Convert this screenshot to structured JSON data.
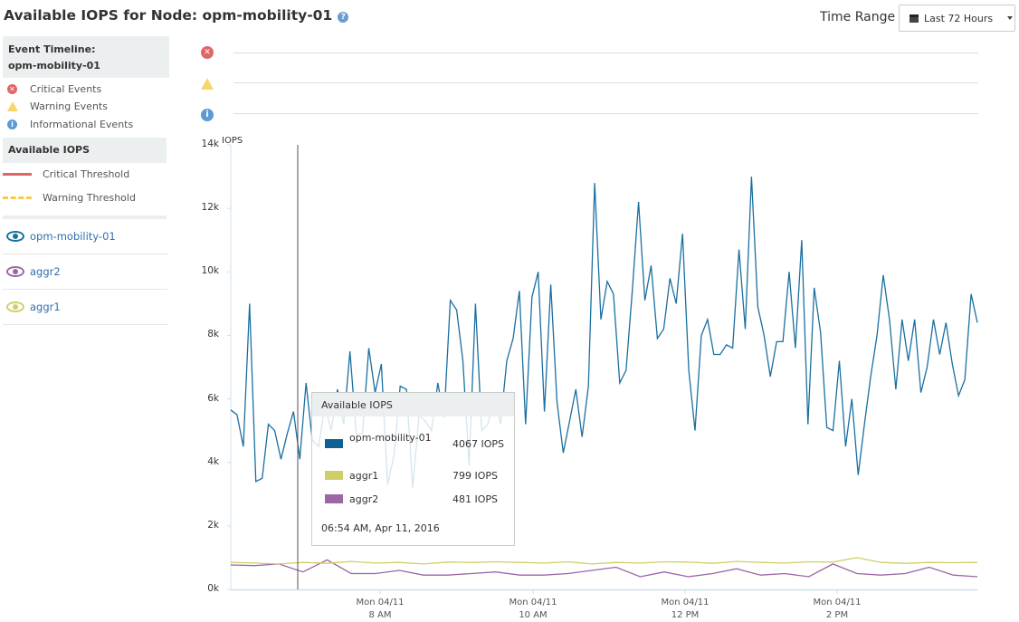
{
  "header": {
    "title": "Available IOPS for Node: opm-mobility-01",
    "help_icon": "question-circle-icon",
    "time_range_label": "Time Range",
    "time_range_value": "Last 72 Hours"
  },
  "sidebar": {
    "event_timeline_title": "Event Timeline:",
    "event_timeline_node": "opm-mobility-01",
    "events": [
      {
        "label": "Critical Events",
        "icon": "critical-icon"
      },
      {
        "label": "Warning Events",
        "icon": "warning-icon"
      },
      {
        "label": "Informational Events",
        "icon": "info-icon"
      }
    ],
    "metric_title": "Available IOPS",
    "thresholds": [
      {
        "label": "Critical Threshold",
        "color": "#e06666"
      },
      {
        "label": "Warning Threshold",
        "color": "#f8c94a"
      }
    ],
    "series": [
      {
        "label": "opm-mobility-01",
        "color": "#1a6fa0"
      },
      {
        "label": "aggr2",
        "color": "#9b66a3"
      },
      {
        "label": "aggr1",
        "color": "#cfcf6a"
      }
    ]
  },
  "tooltip": {
    "title": "Available IOPS",
    "rows": [
      {
        "name": "opm-mobility-01",
        "value": "4067 IOPS",
        "color": "#0f6095"
      },
      {
        "name": "aggr1",
        "value": "799 IOPS",
        "color": "#cfcf6a"
      },
      {
        "name": "aggr2",
        "value": "481 IOPS",
        "color": "#9b66a3"
      }
    ],
    "timestamp": "06:54 AM, Apr 11, 2016"
  },
  "chart_data": {
    "type": "line",
    "ylabel": "IOPS",
    "ylim": [
      0,
      14000
    ],
    "yticks": [
      "0k",
      "2k",
      "4k",
      "6k",
      "8k",
      "10k",
      "12k",
      "14k"
    ],
    "xlim": [
      "06:02 AM",
      "03:51 PM"
    ],
    "xticks": [
      {
        "line1": "Mon 04/11",
        "line2": "8 AM"
      },
      {
        "line1": "Mon 04/11",
        "line2": "10 AM"
      },
      {
        "line1": "Mon 04/11",
        "line2": "12 PM"
      },
      {
        "line1": "Mon 04/11",
        "line2": "2 PM"
      }
    ],
    "cursor_time": "06:54 AM",
    "series": [
      {
        "name": "opm-mobility-01",
        "color": "#1a6fa0",
        "values": [
          5650,
          5500,
          4500,
          9000,
          3400,
          3500,
          5200,
          5000,
          4100,
          4900,
          5600,
          4100,
          6500,
          4700,
          4500,
          5800,
          5000,
          6300,
          5200,
          7500,
          4900,
          4900,
          7600,
          6200,
          7100,
          3300,
          4200,
          6400,
          6300,
          3200,
          5500,
          5300,
          5000,
          6500,
          5400,
          9100,
          8800,
          7200,
          3900,
          9000,
          5000,
          5200,
          6200,
          5200,
          7200,
          7900,
          9400,
          5200,
          9200,
          10000,
          5600,
          9600,
          5900,
          4300,
          5300,
          6300,
          4800,
          6400,
          12800,
          8500,
          9700,
          9300,
          6500,
          6900,
          9400,
          12200,
          9100,
          10200,
          7900,
          8200,
          9800,
          9000,
          11200,
          6900,
          5000,
          8000,
          8500,
          7400,
          7400,
          7700,
          7600,
          10700,
          8200,
          13000,
          8900,
          8000,
          6700,
          7800,
          7800,
          10000,
          7600,
          11000,
          5200,
          9500,
          8100,
          5100,
          5000,
          7200,
          4500,
          6000,
          3600,
          5200,
          6700,
          8000,
          9900,
          8500,
          6300,
          8500,
          7200,
          8500,
          6200,
          7000,
          8500,
          7400,
          8400,
          7100,
          6100,
          6600,
          9300,
          8400
        ]
      },
      {
        "name": "aggr1",
        "color": "#cfcf6a",
        "values": [
          850,
          830,
          800,
          850,
          820,
          880,
          830,
          850,
          800,
          860,
          850,
          870,
          850,
          830,
          870,
          800,
          850,
          830,
          870,
          860,
          820,
          880,
          850,
          830,
          870,
          860,
          1000,
          850,
          820,
          850,
          840,
          850
        ]
      },
      {
        "name": "aggr2",
        "color": "#9b66a3",
        "values": [
          770,
          750,
          800,
          550,
          930,
          500,
          500,
          600,
          450,
          450,
          500,
          550,
          450,
          450,
          500,
          600,
          700,
          400,
          550,
          400,
          500,
          650,
          450,
          500,
          400,
          800,
          500,
          450,
          500,
          700,
          450,
          400
        ]
      }
    ]
  }
}
